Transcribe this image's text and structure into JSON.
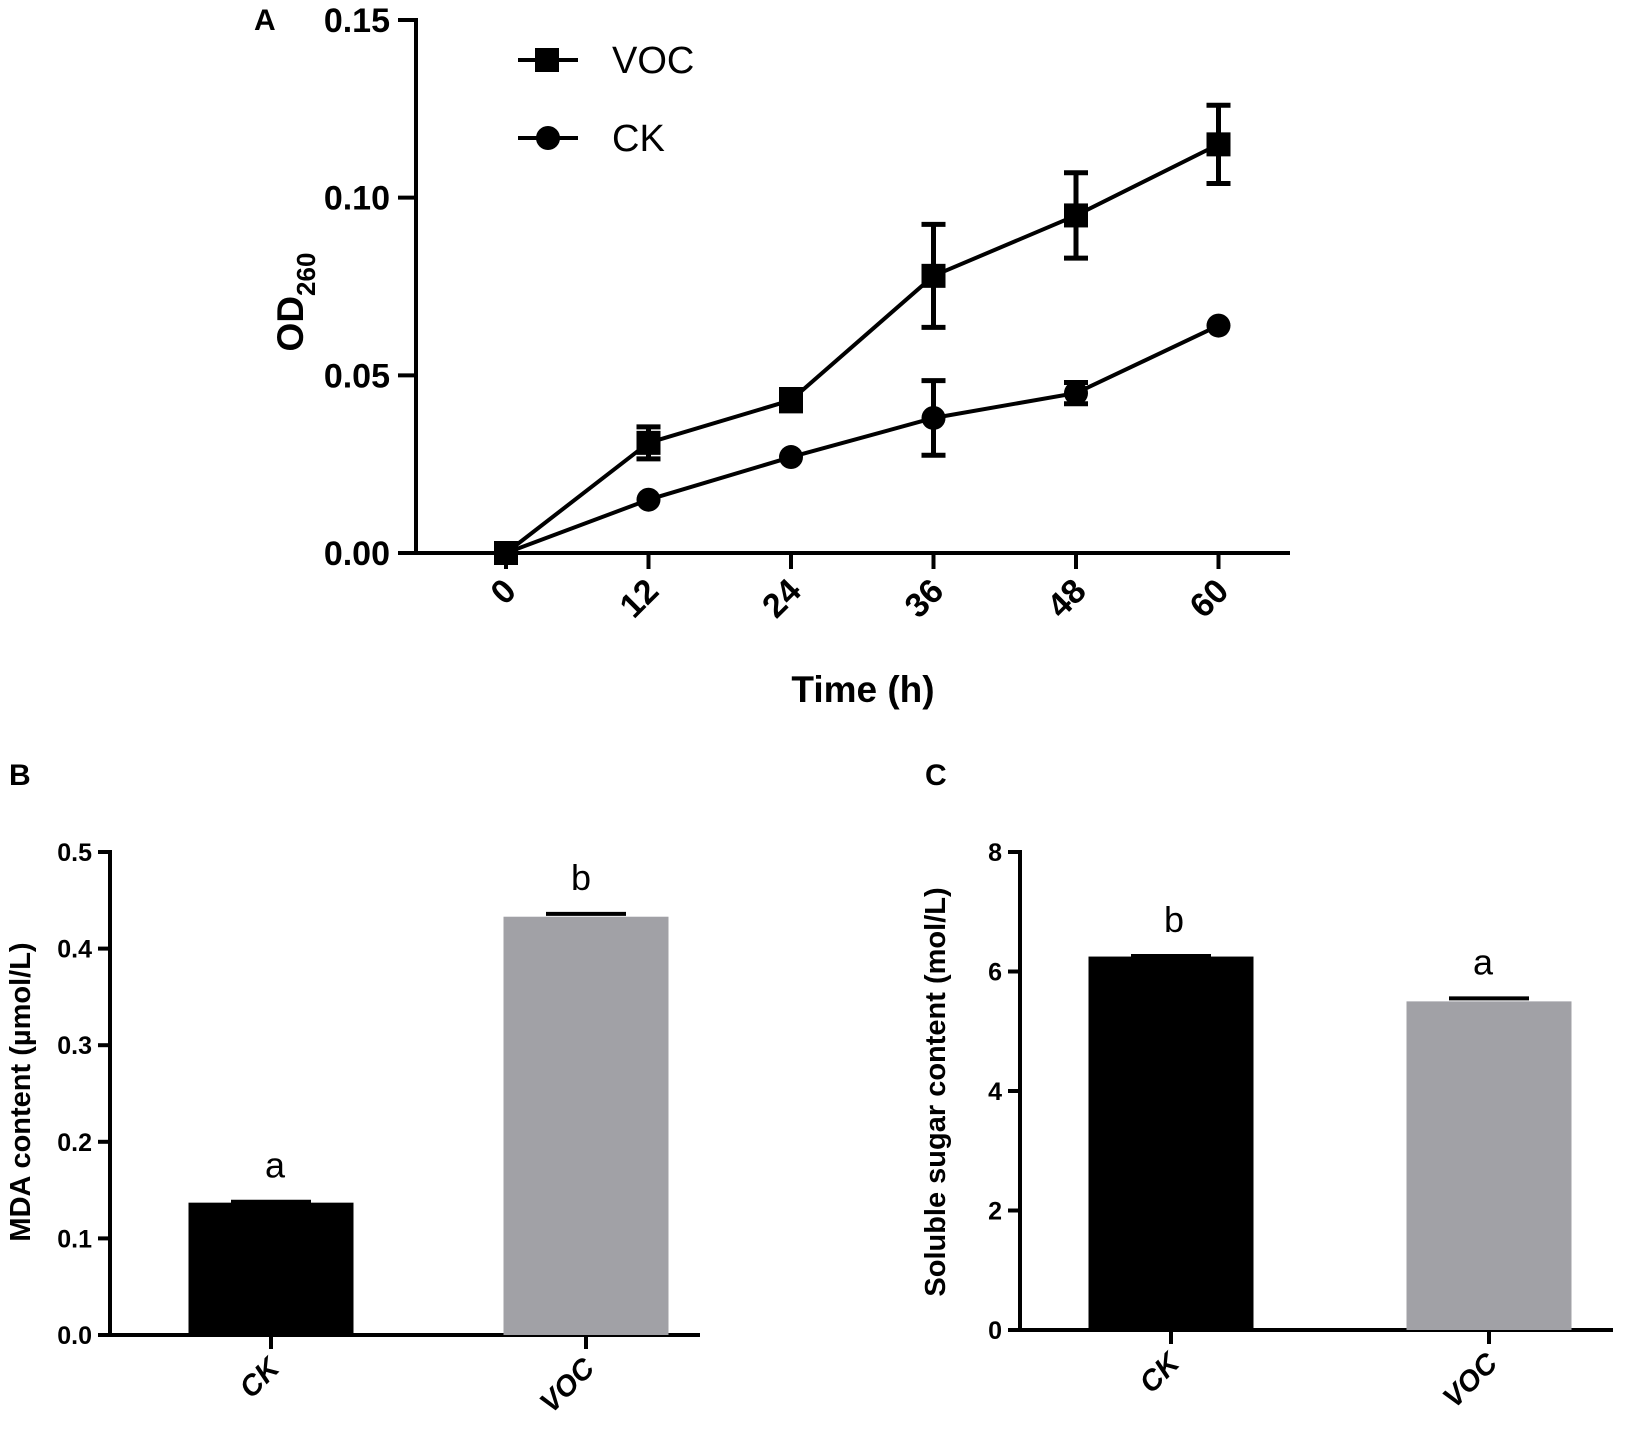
{
  "chart_data": [
    {
      "panel": "A",
      "type": "line",
      "xlabel": "Time (h)",
      "ylabel": "OD",
      "ylabel_subscript": "260",
      "x": [
        0,
        12,
        24,
        36,
        48,
        60
      ],
      "x_tick_labels": [
        "0",
        "12",
        "24",
        "36",
        "48",
        "60"
      ],
      "ylim": [
        0,
        0.15
      ],
      "y_ticks": [
        0,
        0.05,
        0.1,
        0.15
      ],
      "y_tick_labels": [
        "0.00",
        "0.05",
        "0.10",
        "0.15"
      ],
      "legend_position": "top-left",
      "series": [
        {
          "name": "VOC",
          "marker": "square",
          "values": [
            0.0,
            0.031,
            0.043,
            0.078,
            0.095,
            0.115
          ],
          "errors": [
            0.001,
            0.0045,
            0.003,
            0.0145,
            0.012,
            0.011
          ]
        },
        {
          "name": "CK",
          "marker": "circle",
          "values": [
            0.0,
            0.015,
            0.027,
            0.038,
            0.045,
            0.064
          ],
          "errors": [
            0.001,
            0.001,
            0.001,
            0.0105,
            0.003,
            0.001
          ]
        }
      ]
    },
    {
      "panel": "B",
      "type": "bar",
      "categories": [
        "CK",
        "VOC"
      ],
      "values": [
        0.137,
        0.433
      ],
      "errors": [
        0.001,
        0.003
      ],
      "significance_letters": [
        "a",
        "b"
      ],
      "colors": [
        "#000000",
        "#a1a1a6"
      ],
      "ylabel": "MDA content (µmol/L)",
      "ylim": [
        0,
        0.5
      ],
      "y_ticks": [
        0,
        0.1,
        0.2,
        0.3,
        0.4,
        0.5
      ],
      "y_tick_labels": [
        "0.0",
        "0.1",
        "0.2",
        "0.3",
        "0.4",
        "0.5"
      ]
    },
    {
      "panel": "C",
      "type": "bar",
      "categories": [
        "CK",
        "VOC"
      ],
      "values": [
        6.25,
        5.5
      ],
      "errors": [
        0.01,
        0.05
      ],
      "significance_letters": [
        "b",
        "a"
      ],
      "colors": [
        "#000000",
        "#a1a1a6"
      ],
      "ylabel": "Soluble sugar content (mol/L)",
      "ylim": [
        0,
        8
      ],
      "y_ticks": [
        0,
        2,
        4,
        6,
        8
      ],
      "y_tick_labels": [
        "0",
        "2",
        "4",
        "6",
        "8"
      ]
    }
  ]
}
